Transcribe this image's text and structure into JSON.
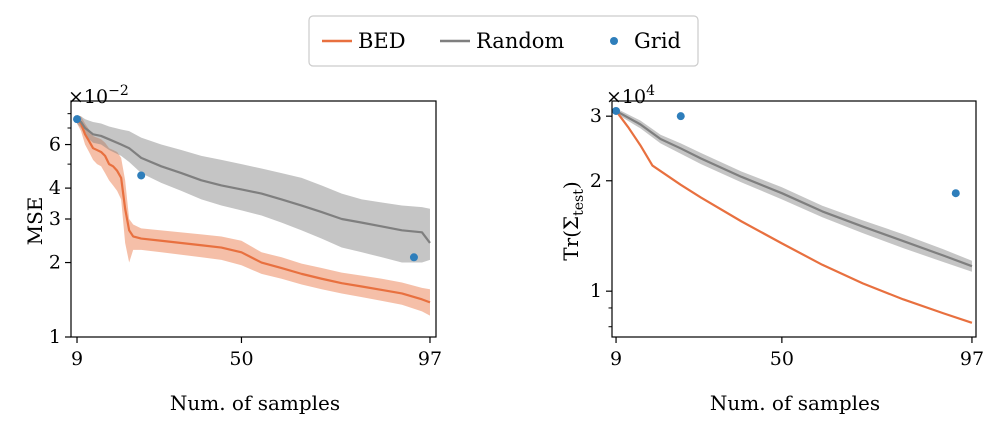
{
  "colors": {
    "bed": "#e8703f",
    "random": "#7f7f7f",
    "grid": "#2e7ebb"
  },
  "legend": {
    "items": [
      "BED",
      "Random",
      "Grid"
    ],
    "placement": "top-center"
  },
  "chart_data": [
    {
      "type": "line",
      "yscale": "log",
      "multiplier": "×10",
      "multiplier_exp": "−2",
      "xlabel": "Num. of samples",
      "ylabel": "MSE",
      "xlim": [
        7.5,
        98.5
      ],
      "ylim": [
        1.0,
        9.0
      ],
      "x_ticks": [
        9,
        50,
        97
      ],
      "y_ticks": [
        1,
        2,
        3,
        4,
        6
      ],
      "series": [
        {
          "name": "BED",
          "x": [
            9,
            10,
            11,
            12,
            13,
            14,
            15,
            16,
            17,
            18,
            19,
            20,
            21,
            22,
            23,
            25,
            30,
            35,
            40,
            45,
            50,
            55,
            60,
            65,
            70,
            75,
            80,
            85,
            90,
            95,
            97
          ],
          "y": [
            7.6,
            7.3,
            6.6,
            6.2,
            5.8,
            5.7,
            5.6,
            5.4,
            5.0,
            4.9,
            4.7,
            4.4,
            3.3,
            2.7,
            2.55,
            2.5,
            2.45,
            2.4,
            2.35,
            2.3,
            2.2,
            2.0,
            1.9,
            1.8,
            1.72,
            1.65,
            1.6,
            1.55,
            1.5,
            1.42,
            1.38
          ],
          "lower": [
            7.3,
            6.8,
            6.0,
            5.6,
            5.2,
            5.0,
            4.9,
            4.6,
            4.3,
            4.1,
            3.9,
            3.6,
            2.4,
            2.0,
            2.25,
            2.25,
            2.2,
            2.15,
            2.1,
            2.05,
            1.95,
            1.8,
            1.72,
            1.63,
            1.56,
            1.5,
            1.45,
            1.4,
            1.35,
            1.27,
            1.22
          ],
          "upper": [
            7.9,
            7.8,
            7.3,
            6.9,
            6.5,
            6.4,
            6.3,
            6.1,
            5.8,
            5.7,
            5.6,
            5.3,
            4.3,
            3.0,
            2.85,
            2.75,
            2.7,
            2.65,
            2.6,
            2.55,
            2.45,
            2.2,
            2.1,
            1.98,
            1.9,
            1.82,
            1.77,
            1.72,
            1.66,
            1.58,
            1.56
          ]
        },
        {
          "name": "Random",
          "x": [
            9,
            10,
            11,
            12,
            13,
            15,
            17,
            20,
            22,
            25,
            30,
            35,
            40,
            45,
            50,
            55,
            60,
            65,
            70,
            75,
            80,
            85,
            90,
            95,
            97
          ],
          "y": [
            7.6,
            7.4,
            7.0,
            6.8,
            6.6,
            6.5,
            6.3,
            6.0,
            5.8,
            5.3,
            4.9,
            4.6,
            4.3,
            4.1,
            3.95,
            3.8,
            3.6,
            3.4,
            3.2,
            3.0,
            2.9,
            2.8,
            2.7,
            2.65,
            2.4
          ],
          "lower": [
            7.3,
            7.0,
            6.5,
            6.3,
            6.1,
            6.0,
            5.7,
            5.4,
            5.1,
            4.6,
            4.2,
            3.9,
            3.6,
            3.4,
            3.25,
            3.1,
            2.9,
            2.7,
            2.5,
            2.3,
            2.2,
            2.1,
            2.0,
            2.0,
            2.05
          ],
          "upper": [
            7.9,
            7.8,
            7.6,
            7.5,
            7.4,
            7.3,
            7.1,
            6.9,
            6.8,
            6.4,
            6.0,
            5.7,
            5.4,
            5.2,
            5.0,
            4.8,
            4.6,
            4.4,
            4.1,
            3.8,
            3.6,
            3.5,
            3.4,
            3.35,
            3.3
          ]
        },
        {
          "name": "Grid",
          "type": "scatter",
          "x": [
            9,
            25,
            93
          ],
          "y": [
            7.6,
            4.5,
            2.1
          ]
        }
      ]
    },
    {
      "type": "line",
      "yscale": "log",
      "multiplier": "×10",
      "multiplier_exp": "4",
      "xlabel": "Num. of samples",
      "ylabel_main": "Tr(Σ",
      "ylabel_sub": "test",
      "ylabel_end": ")",
      "xlim": [
        8.0,
        98.0
      ],
      "ylim": [
        0.75,
        3.3
      ],
      "x_ticks": [
        9,
        50,
        97
      ],
      "y_ticks": [
        1,
        2,
        3
      ],
      "series": [
        {
          "name": "BED",
          "x": [
            9,
            12,
            15,
            18,
            25,
            30,
            40,
            50,
            60,
            70,
            80,
            90,
            97
          ],
          "y": [
            3.1,
            2.8,
            2.5,
            2.2,
            1.95,
            1.8,
            1.55,
            1.35,
            1.18,
            1.05,
            0.95,
            0.87,
            0.82
          ]
        },
        {
          "name": "Random",
          "x": [
            9,
            15,
            20,
            25,
            30,
            40,
            50,
            60,
            70,
            80,
            90,
            97
          ],
          "y": [
            3.1,
            2.85,
            2.6,
            2.45,
            2.3,
            2.05,
            1.85,
            1.65,
            1.5,
            1.37,
            1.25,
            1.17
          ],
          "lower": [
            3.05,
            2.78,
            2.53,
            2.37,
            2.22,
            1.98,
            1.78,
            1.59,
            1.44,
            1.31,
            1.2,
            1.13
          ],
          "upper": [
            3.15,
            2.92,
            2.67,
            2.53,
            2.38,
            2.12,
            1.92,
            1.71,
            1.56,
            1.43,
            1.3,
            1.21
          ]
        },
        {
          "name": "Grid",
          "type": "scatter",
          "x": [
            9,
            25,
            93
          ],
          "y": [
            3.1,
            3.0,
            1.85
          ]
        }
      ]
    }
  ]
}
